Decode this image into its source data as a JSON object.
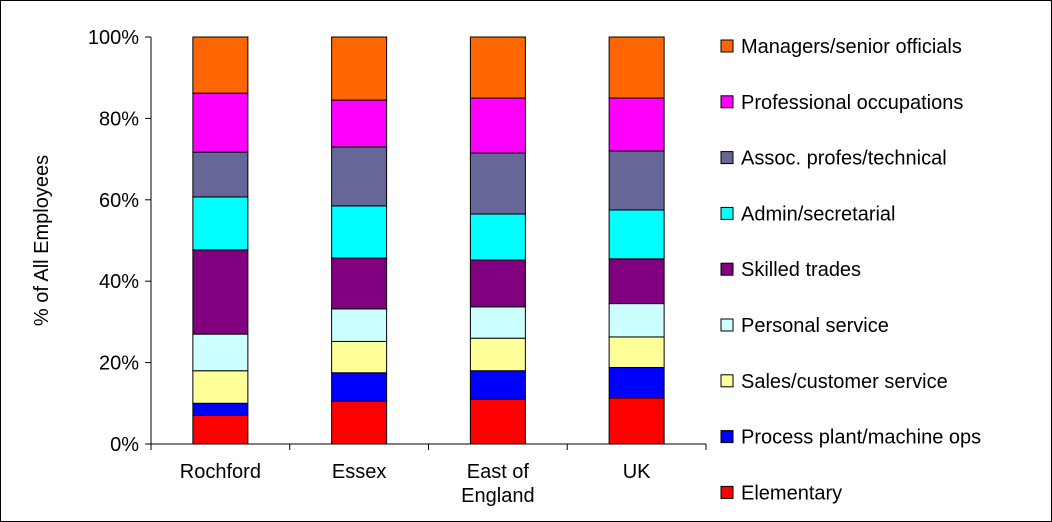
{
  "chart_data": {
    "type": "bar",
    "stacked": true,
    "ylabel": "% of All Employees",
    "xlabel": "",
    "ylim": [
      0,
      100
    ],
    "yticks": [
      "0%",
      "20%",
      "40%",
      "60%",
      "80%",
      "100%"
    ],
    "grid": false,
    "legend_position": "right",
    "categories": [
      [
        "Rochford"
      ],
      [
        "Essex"
      ],
      [
        "East of",
        "England"
      ],
      [
        "UK"
      ]
    ],
    "series": [
      {
        "name": "Elementary",
        "color": "#ff0000",
        "values": [
          7,
          10.5,
          11,
          11.3
        ]
      },
      {
        "name": "Process plant/machine ops",
        "color": "#0000ff",
        "values": [
          3,
          7,
          7,
          7.5
        ]
      },
      {
        "name": "Sales/customer service",
        "color": "#ffff99",
        "values": [
          8,
          7.7,
          8,
          7.5
        ]
      },
      {
        "name": "Personal service",
        "color": "#ccffff",
        "values": [
          9,
          8,
          7.7,
          8.2
        ]
      },
      {
        "name": "Skilled trades",
        "color": "#800080",
        "values": [
          20.7,
          12.5,
          11.5,
          11
        ]
      },
      {
        "name": "Admin/secretarial",
        "color": "#00ffff",
        "values": [
          13,
          12.8,
          11.3,
          12
        ]
      },
      {
        "name": "Assoc. profes/technical",
        "color": "#666699",
        "values": [
          11,
          14.5,
          15,
          14.5
        ]
      },
      {
        "name": "Professional occupations",
        "color": "#ff00ff",
        "values": [
          14.5,
          11.5,
          13.5,
          13
        ]
      },
      {
        "name": "Managers/senior officials",
        "color": "#ff6600",
        "values": [
          13.8,
          15.5,
          15,
          15
        ]
      }
    ]
  }
}
